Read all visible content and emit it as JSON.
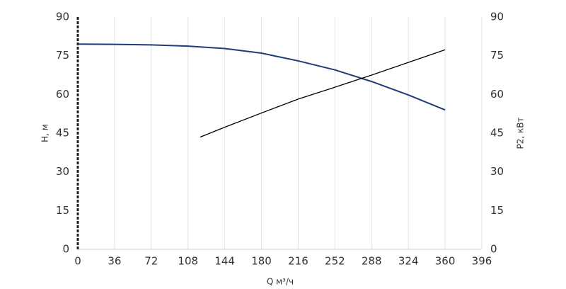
{
  "chart_data": {
    "type": "line",
    "x_label": "Q м³/ч",
    "y_label": "H, м",
    "y2_label": "P2, кВт",
    "xlim": [
      0,
      396
    ],
    "xticks": [
      0,
      36,
      72,
      108,
      144,
      180,
      216,
      252,
      288,
      324,
      360,
      396
    ],
    "ylim": [
      0,
      90
    ],
    "yticks": [
      0,
      15,
      30,
      45,
      60,
      75,
      90
    ],
    "y2lim": [
      0,
      90
    ],
    "y2ticks": [
      0,
      15,
      30,
      45,
      60,
      75,
      90
    ],
    "grid": true,
    "series": [
      {
        "name": "H",
        "color": "#1f3b78",
        "axis": "y",
        "x": [
          0,
          36,
          72,
          108,
          144,
          180,
          216,
          252,
          288,
          324,
          360
        ],
        "values": [
          79.5,
          79.4,
          79.2,
          78.7,
          77.8,
          76,
          73,
          69.5,
          65,
          59.8,
          54
        ]
      },
      {
        "name": "P2",
        "color": "#000000",
        "axis": "y2",
        "x": [
          120,
          144,
          180,
          216,
          252,
          288,
          324,
          360
        ],
        "values": [
          43.5,
          47.3,
          52.8,
          58.2,
          62.8,
          67.5,
          72.4,
          77.3
        ]
      }
    ]
  }
}
